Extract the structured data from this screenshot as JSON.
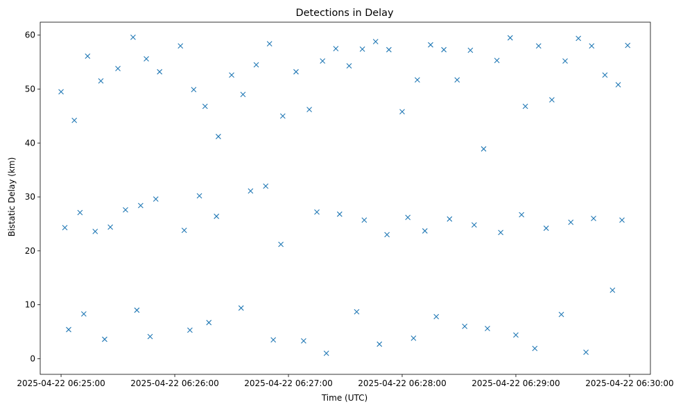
{
  "chart_data": {
    "type": "scatter",
    "title": "Detections in Delay",
    "xlabel": "Time (UTC)",
    "ylabel": "Bistatic Delay (km)",
    "marker": "x",
    "color": "#1f77b4",
    "grid": false,
    "legend": "none",
    "x_axis": {
      "type": "time",
      "range": [
        "2025-04-22 06:24:49",
        "2025-04-22 06:30:11"
      ],
      "ticks": [
        "2025-04-22 06:25:00",
        "2025-04-22 06:26:00",
        "2025-04-22 06:27:00",
        "2025-04-22 06:28:00",
        "2025-04-22 06:29:00",
        "2025-04-22 06:30:00"
      ]
    },
    "y_axis": {
      "range": [
        -2.9,
        62.4
      ],
      "ticks": [
        0,
        10,
        20,
        30,
        40,
        50,
        60
      ]
    },
    "x": [
      "2025-04-22 06:25:00",
      "2025-04-22 06:25:07",
      "2025-04-22 06:25:14",
      "2025-04-22 06:25:21",
      "2025-04-22 06:25:30",
      "2025-04-22 06:25:38",
      "2025-04-22 06:25:45",
      "2025-04-22 06:25:52",
      "2025-04-22 06:26:03",
      "2025-04-22 06:26:10",
      "2025-04-22 06:26:16",
      "2025-04-22 06:26:23",
      "2025-04-22 06:26:30",
      "2025-04-22 06:26:36",
      "2025-04-22 06:26:43",
      "2025-04-22 06:26:50",
      "2025-04-22 06:26:57",
      "2025-04-22 06:27:04",
      "2025-04-22 06:27:11",
      "2025-04-22 06:27:18",
      "2025-04-22 06:27:25",
      "2025-04-22 06:27:32",
      "2025-04-22 06:27:39",
      "2025-04-22 06:27:46",
      "2025-04-22 06:27:53",
      "2025-04-22 06:28:00",
      "2025-04-22 06:28:08",
      "2025-04-22 06:28:15",
      "2025-04-22 06:28:22",
      "2025-04-22 06:28:29",
      "2025-04-22 06:28:36",
      "2025-04-22 06:28:43",
      "2025-04-22 06:28:50",
      "2025-04-22 06:28:57",
      "2025-04-22 06:29:05",
      "2025-04-22 06:29:12",
      "2025-04-22 06:29:19",
      "2025-04-22 06:29:26",
      "2025-04-22 06:29:33",
      "2025-04-22 06:29:40",
      "2025-04-22 06:29:47",
      "2025-04-22 06:29:54",
      "2025-04-22 06:29:59",
      "2025-04-22 06:25:02",
      "2025-04-22 06:25:10",
      "2025-04-22 06:25:18",
      "2025-04-22 06:25:26",
      "2025-04-22 06:25:34",
      "2025-04-22 06:25:42",
      "2025-04-22 06:25:50",
      "2025-04-22 06:26:05",
      "2025-04-22 06:26:13",
      "2025-04-22 06:26:22",
      "2025-04-22 06:26:40",
      "2025-04-22 06:26:48",
      "2025-04-22 06:26:56",
      "2025-04-22 06:27:15",
      "2025-04-22 06:27:27",
      "2025-04-22 06:27:40",
      "2025-04-22 06:27:52",
      "2025-04-22 06:28:03",
      "2025-04-22 06:28:12",
      "2025-04-22 06:28:25",
      "2025-04-22 06:28:38",
      "2025-04-22 06:28:52",
      "2025-04-22 06:29:03",
      "2025-04-22 06:29:16",
      "2025-04-22 06:29:29",
      "2025-04-22 06:29:41",
      "2025-04-22 06:29:56",
      "2025-04-22 06:25:04",
      "2025-04-22 06:25:23",
      "2025-04-22 06:25:47",
      "2025-04-22 06:26:18",
      "2025-04-22 06:26:52",
      "2025-04-22 06:27:20",
      "2025-04-22 06:27:48",
      "2025-04-22 06:28:18",
      "2025-04-22 06:28:45",
      "2025-04-22 06:29:10",
      "2025-04-22 06:29:37",
      "2025-04-22 06:25:12",
      "2025-04-22 06:25:40",
      "2025-04-22 06:26:08",
      "2025-04-22 06:26:35",
      "2025-04-22 06:27:08",
      "2025-04-22 06:27:36",
      "2025-04-22 06:28:06",
      "2025-04-22 06:28:33",
      "2025-04-22 06:29:00",
      "2025-04-22 06:29:24",
      "2025-04-22 06:29:51"
    ],
    "y": [
      49.5,
      44.2,
      56.1,
      51.5,
      53.8,
      59.6,
      55.6,
      53.2,
      58.0,
      49.9,
      46.8,
      41.2,
      52.6,
      49.0,
      54.5,
      58.4,
      45.0,
      53.2,
      46.2,
      55.2,
      57.5,
      54.3,
      57.4,
      58.8,
      57.3,
      45.8,
      51.7,
      58.2,
      57.3,
      51.7,
      57.2,
      38.9,
      55.3,
      59.5,
      46.8,
      58.0,
      48.0,
      55.2,
      59.4,
      58.0,
      52.6,
      50.8,
      58.1,
      24.3,
      27.1,
      23.6,
      24.4,
      27.6,
      28.4,
      29.6,
      23.8,
      30.2,
      26.4,
      31.1,
      32.0,
      21.2,
      27.2,
      26.8,
      25.7,
      23.0,
      26.2,
      23.7,
      25.9,
      24.8,
      23.4,
      26.7,
      24.2,
      25.3,
      26.0,
      25.7,
      5.4,
      3.6,
      4.1,
      6.7,
      3.5,
      1.0,
      2.7,
      7.8,
      5.6,
      1.9,
      1.2,
      8.3,
      9.0,
      5.3,
      9.4,
      3.3,
      8.7,
      3.8,
      6.0,
      4.4,
      8.2,
      12.7
    ],
    "series_note_count": 92
  }
}
